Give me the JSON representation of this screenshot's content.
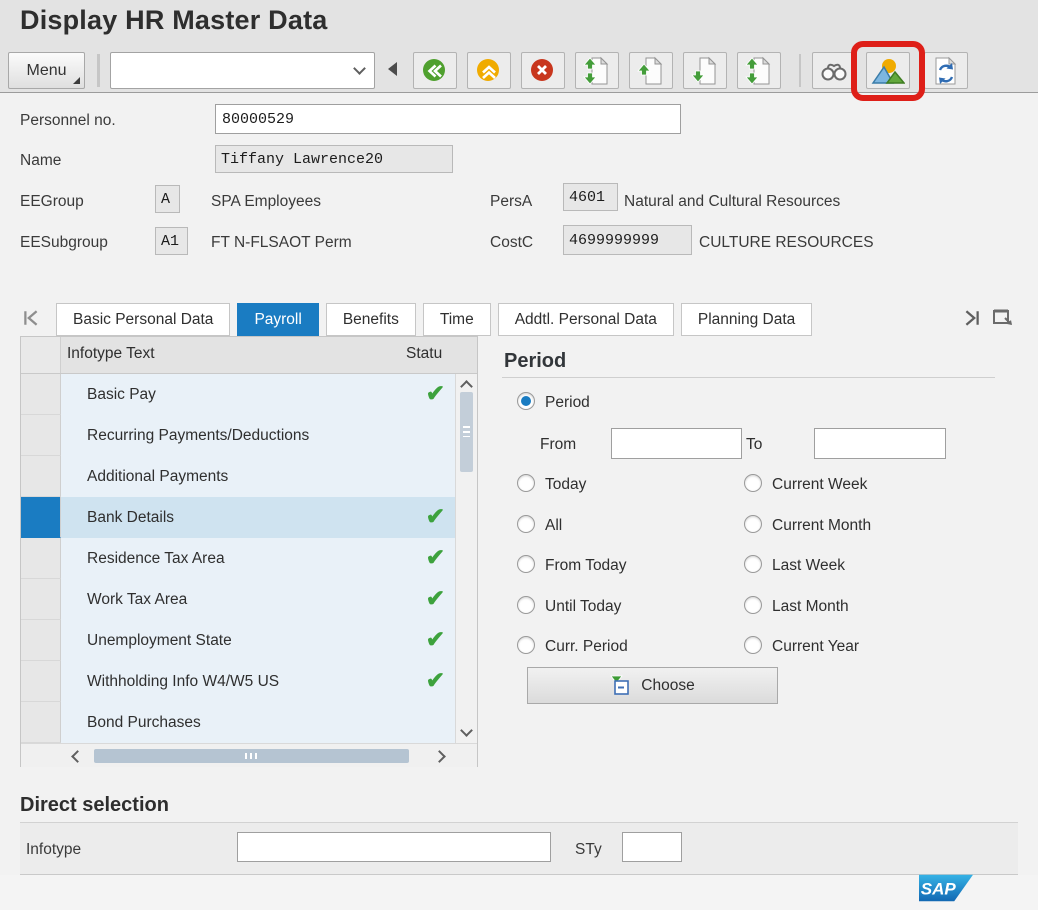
{
  "window": {
    "title": "Display HR Master Data"
  },
  "toolbar": {
    "menu_label": "Menu",
    "command_value": "",
    "icons": [
      "back-icon",
      "exit-icon",
      "cancel-icon",
      "first-page-icon",
      "previous-page-icon",
      "next-page-icon",
      "last-page-icon",
      "find-icon",
      "overview-icon",
      "refresh-icon"
    ]
  },
  "annotation": {
    "highlighted_control": "overview-button",
    "highlight_color": "#de1f18"
  },
  "employee": {
    "personnel_no_label": "Personnel no.",
    "personnel_no": "80000529",
    "name_label": "Name",
    "name": "Tiffany Lawrence20",
    "ee_group_label": "EEGroup",
    "ee_group": "A",
    "ee_group_text": "SPA Employees",
    "ee_subgroup_label": "EESubgroup",
    "ee_subgroup": "A1",
    "ee_subgroup_text": "FT N-FLSAOT Perm",
    "pers_area_label": "PersA",
    "pers_area": "4601",
    "pers_area_text": "Natural and Cultural Resources",
    "cost_center_label": "CostC",
    "cost_center": "4699999999",
    "cost_center_text": "CULTURE RESOURCES"
  },
  "tabs": [
    {
      "label": "Basic Personal Data",
      "active": false
    },
    {
      "label": "Payroll",
      "active": true
    },
    {
      "label": "Benefits",
      "active": false
    },
    {
      "label": "Time",
      "active": false
    },
    {
      "label": "Addtl. Personal Data",
      "active": false
    },
    {
      "label": "Planning Data",
      "active": false
    }
  ],
  "infotype_table": {
    "col_infotype": "Infotype Text",
    "col_status": "Statu",
    "rows": [
      {
        "text": "Basic Pay",
        "checked": true,
        "selected": false
      },
      {
        "text": "Recurring Payments/Deductions",
        "checked": false,
        "selected": false
      },
      {
        "text": "Additional Payments",
        "checked": false,
        "selected": false
      },
      {
        "text": "Bank Details",
        "checked": true,
        "selected": true
      },
      {
        "text": "Residence Tax Area",
        "checked": true,
        "selected": false
      },
      {
        "text": "Work Tax Area",
        "checked": true,
        "selected": false
      },
      {
        "text": "Unemployment State",
        "checked": true,
        "selected": false
      },
      {
        "text": "Withholding Info W4/W5 US",
        "checked": true,
        "selected": false
      },
      {
        "text": "Bond Purchases",
        "checked": false,
        "selected": false
      }
    ]
  },
  "period": {
    "title": "Period",
    "main_option": "Period",
    "selected_option": "Period",
    "from_label": "From",
    "from_value": "",
    "to_label": "To",
    "to_value": "",
    "options_left": [
      "Today",
      "All",
      "From Today",
      "Until Today",
      "Curr. Period"
    ],
    "options_right": [
      "Current Week",
      "Current Month",
      "Last Week",
      "Last Month",
      "Current Year"
    ],
    "choose_label": "Choose"
  },
  "direct_selection": {
    "title": "Direct selection",
    "infotype_label": "Infotype",
    "infotype_value": "",
    "sty_label": "STy",
    "sty_value": ""
  },
  "branding": {
    "logo_text": "SAP"
  },
  "colors": {
    "accent_blue": "#1a7cc2",
    "row_bg": "#e9f1f8",
    "selected_row_bg": "#cfe3f0",
    "check_green": "#3da23d",
    "highlight_red": "#de1f18",
    "back_green": "#4fa02e",
    "exit_orange": "#f0ab00",
    "cancel_red": "#c8361d"
  }
}
